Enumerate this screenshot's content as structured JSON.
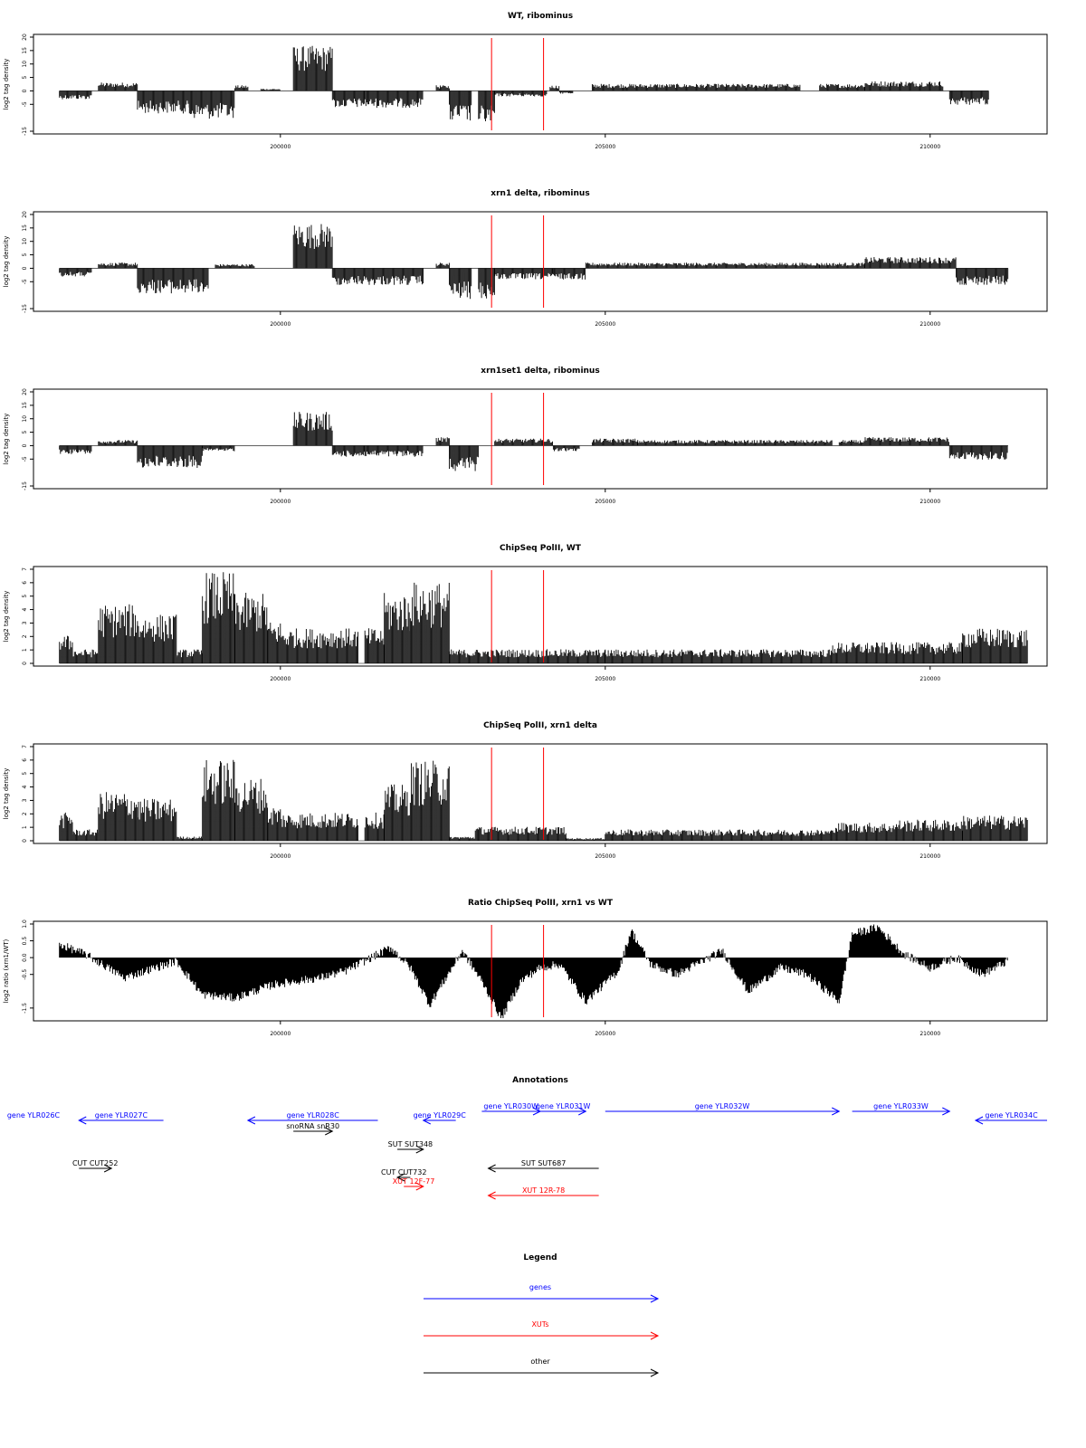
{
  "chart_data": [
    {
      "type": "bar",
      "title": "WT, ribominus",
      "ylabel": "log2 tag density",
      "ylim": [
        -15,
        20
      ],
      "yticks": [
        20,
        15,
        10,
        5,
        0,
        -5,
        -15
      ],
      "ytick_labels": [
        "20",
        "15",
        "10",
        "5",
        "0",
        "-5",
        "-15"
      ],
      "xlim": [
        196200,
        211800
      ],
      "xticks": [
        200000,
        205000,
        210000
      ],
      "xtick_labels": [
        "200000",
        "205000",
        "210000"
      ],
      "red_markers": [
        203250,
        204050
      ],
      "series": [
        {
          "profile": [
            [
              196600,
              197100,
              -3
            ],
            [
              197200,
              197800,
              3
            ],
            [
              197800,
              198600,
              -8
            ],
            [
              198600,
              199300,
              -10
            ],
            [
              199300,
              199500,
              2
            ],
            [
              199700,
              200000,
              0.8
            ],
            [
              200200,
              200800,
              16
            ],
            [
              200800,
              201300,
              -6
            ],
            [
              201300,
              202200,
              -6
            ],
            [
              202400,
              202600,
              2
            ],
            [
              202600,
              202950,
              -11
            ],
            [
              203050,
              203300,
              -12
            ],
            [
              203300,
              204100,
              -2
            ],
            [
              204150,
              204300,
              2
            ],
            [
              204300,
              204500,
              -1
            ],
            [
              204800,
              205300,
              2.5
            ],
            [
              205300,
              208000,
              2.5
            ],
            [
              208300,
              209000,
              2.5
            ],
            [
              209000,
              210200,
              3.5
            ],
            [
              210300,
              210900,
              -5
            ]
          ]
        }
      ]
    },
    {
      "type": "bar",
      "title": "xrn1 delta, ribominus",
      "ylabel": "log2 tag density",
      "ylim": [
        -15,
        20
      ],
      "yticks": [
        20,
        15,
        10,
        5,
        0,
        -5,
        -15
      ],
      "ytick_labels": [
        "20",
        "15",
        "10",
        "5",
        "0",
        "-5",
        "-15"
      ],
      "xlim": [
        196200,
        211800
      ],
      "xticks": [
        200000,
        205000,
        210000
      ],
      "xtick_labels": [
        "200000",
        "205000",
        "210000"
      ],
      "red_markers": [
        203250,
        204050
      ],
      "series": [
        {
          "profile": [
            [
              196600,
              197100,
              -3
            ],
            [
              197200,
              197800,
              2
            ],
            [
              197800,
              198900,
              -9
            ],
            [
              199000,
              199600,
              1.5
            ],
            [
              200200,
              200800,
              16
            ],
            [
              200800,
              201400,
              -6
            ],
            [
              201400,
              202200,
              -6
            ],
            [
              202400,
              202600,
              2
            ],
            [
              202600,
              202950,
              -11
            ],
            [
              203050,
              203300,
              -11
            ],
            [
              203300,
              204200,
              -4
            ],
            [
              204200,
              204700,
              -4
            ],
            [
              204700,
              205300,
              2
            ],
            [
              205300,
              208300,
              2
            ],
            [
              208300,
              209000,
              2
            ],
            [
              209000,
              210400,
              4
            ],
            [
              210400,
              211200,
              -6
            ]
          ]
        }
      ]
    },
    {
      "type": "bar",
      "title": "xrn1set1 delta, ribominus",
      "ylabel": "log2 tag density",
      "ylim": [
        -15,
        20
      ],
      "yticks": [
        20,
        15,
        10,
        5,
        0,
        -5,
        -15
      ],
      "ytick_labels": [
        "20",
        "15",
        "10",
        "5",
        "0",
        "-5",
        "-15"
      ],
      "xlim": [
        196200,
        211800
      ],
      "xticks": [
        200000,
        205000,
        210000
      ],
      "xtick_labels": [
        "200000",
        "205000",
        "210000"
      ],
      "red_markers": [
        203250,
        204050
      ],
      "series": [
        {
          "profile": [
            [
              196600,
              197100,
              -3
            ],
            [
              197200,
              197800,
              2
            ],
            [
              197800,
              198800,
              -8
            ],
            [
              198800,
              199300,
              -2
            ],
            [
              200200,
              200800,
              12
            ],
            [
              200800,
              201300,
              -4
            ],
            [
              201300,
              202200,
              -4
            ],
            [
              202400,
              202600,
              3
            ],
            [
              202600,
              203050,
              -9
            ],
            [
              203300,
              204200,
              2.5
            ],
            [
              204200,
              204600,
              -2
            ],
            [
              204800,
              205500,
              2.5
            ],
            [
              205500,
              208500,
              2
            ],
            [
              208600,
              209000,
              2
            ],
            [
              209000,
              210300,
              3
            ],
            [
              210300,
              211200,
              -5
            ]
          ]
        }
      ]
    },
    {
      "type": "bar",
      "title": "ChipSeq PolII, WT",
      "ylabel": "log2 tag density",
      "ylim": [
        0,
        7
      ],
      "yticks": [
        0,
        1,
        2,
        3,
        4,
        5,
        6,
        7
      ],
      "ytick_labels": [
        "0",
        "1",
        "2",
        "3",
        "4",
        "5",
        "6",
        "7"
      ],
      "xlim": [
        196200,
        211800
      ],
      "xticks": [
        200000,
        205000,
        210000
      ],
      "xtick_labels": [
        "200000",
        "205000",
        "210000"
      ],
      "red_markers": [
        203250,
        204050
      ],
      "series": [
        {
          "profile": [
            [
              196600,
              196800,
              2
            ],
            [
              196800,
              197200,
              1
            ],
            [
              197200,
              197800,
              4.2
            ],
            [
              197800,
              198400,
              3.5
            ],
            [
              198400,
              198800,
              1
            ],
            [
              198800,
              199300,
              6.5
            ],
            [
              199300,
              199800,
              5
            ],
            [
              199800,
              200000,
              3
            ],
            [
              200000,
              201200,
              2.5
            ],
            [
              201300,
              201600,
              2.5
            ],
            [
              201600,
              202000,
              5
            ],
            [
              202000,
              202600,
              5.8
            ],
            [
              202600,
              203000,
              1
            ],
            [
              203000,
              205000,
              1
            ],
            [
              205000,
              208500,
              1
            ],
            [
              208500,
              209500,
              1.5
            ],
            [
              209500,
              210500,
              1.5
            ],
            [
              210500,
              211500,
              2.5
            ]
          ]
        }
      ]
    },
    {
      "type": "bar",
      "title": "ChipSeq PolII, xrn1 delta",
      "ylabel": "log2 tag density",
      "ylim": [
        0,
        7
      ],
      "yticks": [
        0,
        1,
        2,
        3,
        4,
        5,
        6,
        7
      ],
      "ytick_labels": [
        "0",
        "1",
        "2",
        "3",
        "4",
        "5",
        "6",
        "7"
      ],
      "xlim": [
        196200,
        211800
      ],
      "xticks": [
        200000,
        205000,
        210000
      ],
      "xtick_labels": [
        "200000",
        "205000",
        "210000"
      ],
      "red_markers": [
        203250,
        204050
      ],
      "series": [
        {
          "profile": [
            [
              196600,
              196800,
              2
            ],
            [
              196800,
              197200,
              0.8
            ],
            [
              197200,
              197800,
              3.5
            ],
            [
              197800,
              198400,
              3
            ],
            [
              198400,
              198800,
              0.3
            ],
            [
              198800,
              199300,
              5.8
            ],
            [
              199300,
              199800,
              4.5
            ],
            [
              199800,
              200000,
              2.5
            ],
            [
              200000,
              201200,
              2
            ],
            [
              201300,
              201600,
              2
            ],
            [
              201600,
              202000,
              4
            ],
            [
              202000,
              202600,
              5.7
            ],
            [
              202600,
              203000,
              0.3
            ],
            [
              203000,
              204400,
              1
            ],
            [
              204400,
              205000,
              0.2
            ],
            [
              205000,
              208500,
              0.8
            ],
            [
              208500,
              209500,
              1.3
            ],
            [
              209500,
              210500,
              1.5
            ],
            [
              210500,
              211500,
              1.8
            ]
          ]
        }
      ]
    },
    {
      "type": "area",
      "title": "Ratio ChipSeq PolII, xrn1 vs WT",
      "ylabel": "log2 ratio (xrn1/WT)",
      "ylim": [
        -1.8,
        1.0
      ],
      "yticks": [
        1.0,
        0.5,
        0.0,
        -0.5,
        -1.5
      ],
      "ytick_labels": [
        "1.0",
        "0.5",
        "0.0",
        "-0.5",
        "-1.5"
      ],
      "xlim": [
        196200,
        211800
      ],
      "xticks": [
        200000,
        205000,
        210000
      ],
      "xtick_labels": [
        "200000",
        "205000",
        "210000"
      ],
      "red_markers": [
        203250,
        204050
      ],
      "series": [
        {
          "profile": [
            [
              196600,
              0.4
            ],
            [
              197000,
              0.1
            ],
            [
              197600,
              -0.6
            ],
            [
              198400,
              -0.1
            ],
            [
              198800,
              -1.1
            ],
            [
              199300,
              -1.2
            ],
            [
              199900,
              -0.8
            ],
            [
              200600,
              -0.6
            ],
            [
              201000,
              -0.4
            ],
            [
              201700,
              0.3
            ],
            [
              202000,
              -0.3
            ],
            [
              202300,
              -1.4
            ],
            [
              202800,
              0.2
            ],
            [
              203100,
              -0.7
            ],
            [
              203400,
              -1.8
            ],
            [
              203700,
              -0.7
            ],
            [
              204000,
              -0.3
            ],
            [
              204300,
              -0.2
            ],
            [
              204700,
              -1.3
            ],
            [
              205200,
              -0.4
            ],
            [
              205400,
              0.8
            ],
            [
              205700,
              -0.2
            ],
            [
              206100,
              -0.5
            ],
            [
              206400,
              -0.2
            ],
            [
              206800,
              0.2
            ],
            [
              207200,
              -1.0
            ],
            [
              207700,
              -0.3
            ],
            [
              208100,
              -0.5
            ],
            [
              208600,
              -1.3
            ],
            [
              208800,
              0.7
            ],
            [
              209200,
              0.9
            ],
            [
              209600,
              0.1
            ],
            [
              210000,
              -0.3
            ],
            [
              210400,
              0.0
            ],
            [
              210800,
              -0.5
            ],
            [
              211200,
              -0.1
            ]
          ]
        }
      ]
    }
  ],
  "annotations": {
    "title": "Annotations",
    "xlim": [
      196200,
      211800
    ],
    "arrows": [
      {
        "label": "gene YLR026C",
        "from": 196200,
        "to": 196200,
        "row": 0,
        "color": "#0000ff"
      },
      {
        "label": "gene YLR027C",
        "from": 198200,
        "to": 196900,
        "row": 0,
        "color": "#0000ff"
      },
      {
        "label": "snoRNA snR30",
        "from": 200200,
        "to": 200800,
        "row": 1,
        "color": "#000000"
      },
      {
        "label": "gene YLR028C",
        "from": 201500,
        "to": 199500,
        "row": 0,
        "color": "#0000ff"
      },
      {
        "label": "gene YLR029C",
        "from": 202700,
        "to": 202200,
        "row": 0,
        "color": "#0000ff"
      },
      {
        "label": "SUT SUT348",
        "from": 201800,
        "to": 202200,
        "row": 2,
        "color": "#000000"
      },
      {
        "label": "CUT CUT252",
        "from": 196900,
        "to": 197400,
        "row": 3,
        "color": "#000000"
      },
      {
        "label": "CUT CUT732",
        "from": 202000,
        "to": 201800,
        "row": 4,
        "color": "#000000"
      },
      {
        "label": "XUT 12F-77",
        "from": 201900,
        "to": 202200,
        "row": 5,
        "color": "#ff0000"
      },
      {
        "label": "gene YLR030W",
        "from": 203100,
        "to": 204000,
        "row": -1,
        "color": "#0000ff"
      },
      {
        "label": "gene YLR031W",
        "from": 204000,
        "to": 204700,
        "row": -1,
        "color": "#0000ff"
      },
      {
        "label": "gene YLR032W",
        "from": 205000,
        "to": 208600,
        "row": -1,
        "color": "#0000ff"
      },
      {
        "label": "gene YLR033W",
        "from": 208800,
        "to": 210300,
        "row": -1,
        "color": "#0000ff"
      },
      {
        "label": "gene YLR034C",
        "from": 211800,
        "to": 210700,
        "row": 0,
        "color": "#0000ff"
      },
      {
        "label": "SUT SUT687",
        "from": 204900,
        "to": 203200,
        "row": 3,
        "color": "#000000"
      },
      {
        "label": "XUT 12R-78",
        "from": 204900,
        "to": 203200,
        "row": 6,
        "color": "#ff0000"
      }
    ]
  },
  "legend": {
    "title": "Legend",
    "items": [
      {
        "label": "genes",
        "color": "#0000ff"
      },
      {
        "label": "XUTs",
        "color": "#ff0000"
      },
      {
        "label": "other",
        "color": "#000000"
      }
    ]
  }
}
